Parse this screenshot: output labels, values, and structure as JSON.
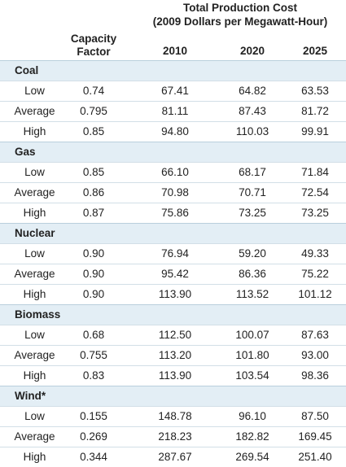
{
  "header": {
    "main_title": "Total Production Cost",
    "subtitle": "(2009 Dollars per Megawatt-Hour)",
    "capacity_line1": "Capacity",
    "capacity_line2": "Factor",
    "years": [
      "2010",
      "2020",
      "2025"
    ]
  },
  "groups": [
    {
      "name": "Coal",
      "rows": [
        {
          "label": "Low",
          "capacity": "0.74",
          "v2010": "67.41",
          "v2020": "64.82",
          "v2025": "63.53"
        },
        {
          "label": "Average",
          "capacity": "0.795",
          "v2010": "81.11",
          "v2020": "87.43",
          "v2025": "81.72"
        },
        {
          "label": "High",
          "capacity": "0.85",
          "v2010": "94.80",
          "v2020": "110.03",
          "v2025": "99.91"
        }
      ]
    },
    {
      "name": "Gas",
      "rows": [
        {
          "label": "Low",
          "capacity": "0.85",
          "v2010": "66.10",
          "v2020": "68.17",
          "v2025": "71.84"
        },
        {
          "label": "Average",
          "capacity": "0.86",
          "v2010": "70.98",
          "v2020": "70.71",
          "v2025": "72.54"
        },
        {
          "label": "High",
          "capacity": "0.87",
          "v2010": "75.86",
          "v2020": "73.25",
          "v2025": "73.25"
        }
      ]
    },
    {
      "name": "Nuclear",
      "rows": [
        {
          "label": "Low",
          "capacity": "0.90",
          "v2010": "76.94",
          "v2020": "59.20",
          "v2025": "49.33"
        },
        {
          "label": "Average",
          "capacity": "0.90",
          "v2010": "95.42",
          "v2020": "86.36",
          "v2025": "75.22"
        },
        {
          "label": "High",
          "capacity": "0.90",
          "v2010": "113.90",
          "v2020": "113.52",
          "v2025": "101.12"
        }
      ]
    },
    {
      "name": "Biomass",
      "rows": [
        {
          "label": "Low",
          "capacity": "0.68",
          "v2010": "112.50",
          "v2020": "100.07",
          "v2025": "87.63"
        },
        {
          "label": "Average",
          "capacity": "0.755",
          "v2010": "113.20",
          "v2020": "101.80",
          "v2025": "93.00"
        },
        {
          "label": "High",
          "capacity": "0.83",
          "v2010": "113.90",
          "v2020": "103.54",
          "v2025": "98.36"
        }
      ]
    },
    {
      "name": "Wind*",
      "rows": [
        {
          "label": "Low",
          "capacity": "0.155",
          "v2010": "148.78",
          "v2020": "96.10",
          "v2025": "87.50"
        },
        {
          "label": "Average",
          "capacity": "0.269",
          "v2010": "218.23",
          "v2020": "182.82",
          "v2025": "169.45"
        },
        {
          "label": "High",
          "capacity": "0.344",
          "v2010": "287.67",
          "v2020": "269.54",
          "v2025": "251.40"
        }
      ]
    }
  ],
  "colors": {
    "group_row_background": "#e3eef5",
    "text": "#222222"
  }
}
